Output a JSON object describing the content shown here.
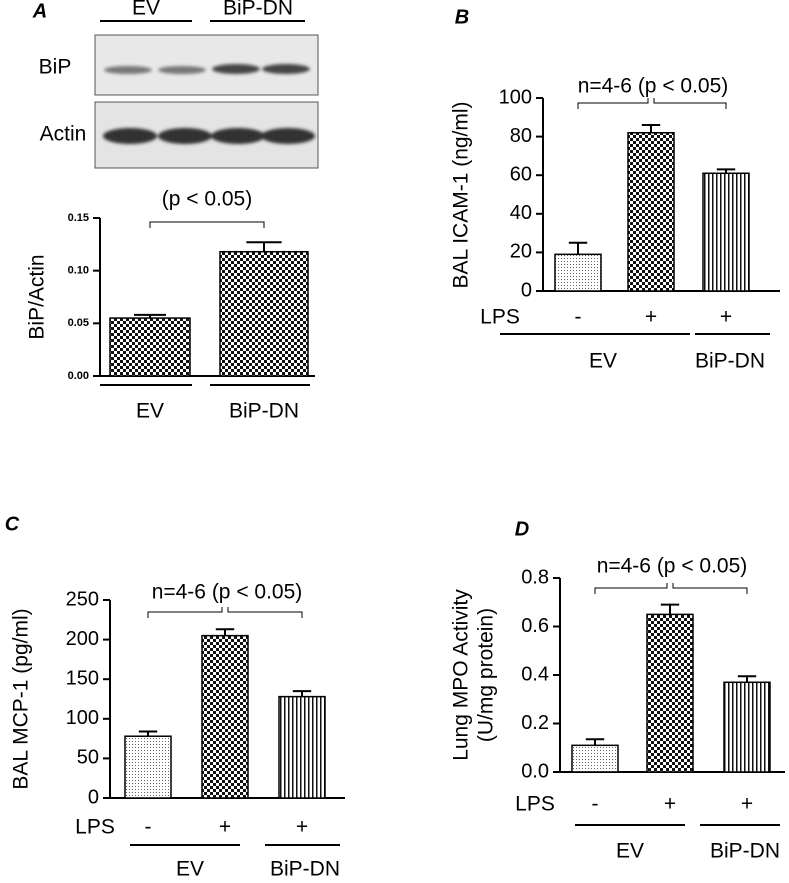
{
  "chart_data": [
    {
      "type": "bar",
      "panel": "A",
      "blot_labels": [
        "BiP",
        "Actin"
      ],
      "blot_groups": [
        "EV",
        "BiP-DN"
      ],
      "y_label": "BiP/Actin",
      "annotation": "(p < 0.05)",
      "categories": [
        "EV",
        "BiP-DN"
      ],
      "values": [
        0.055,
        0.118
      ],
      "errors": [
        0.003,
        0.009
      ],
      "patterns": [
        "checker",
        "checker"
      ],
      "ylim": [
        0,
        0.15
      ],
      "yticks": [
        {
          "value": 0,
          "label": "0.00"
        },
        {
          "value": 0.05,
          "label": "0.05"
        },
        {
          "value": 0.1,
          "label": "0.10"
        },
        {
          "value": 0.15,
          "label": "0.15"
        }
      ]
    },
    {
      "type": "bar",
      "panel": "B",
      "y_label": "BAL ICAM-1  (ng/ml)",
      "annotation": "n=4-6 (p < 0.05)",
      "row_label": "LPS",
      "categories": [
        "-",
        "+",
        "+"
      ],
      "groups": [
        "EV",
        "BiP-DN"
      ],
      "values": [
        19,
        82,
        61
      ],
      "errors": [
        6,
        4,
        2
      ],
      "patterns": [
        "dots",
        "checker",
        "stripes"
      ],
      "ylim": [
        0,
        100
      ],
      "yticks": [
        0,
        20,
        40,
        60,
        80,
        100
      ]
    },
    {
      "type": "bar",
      "panel": "C",
      "y_label": "BAL MCP-1  (pg/ml)",
      "annotation": "n=4-6 (p < 0.05)",
      "row_label": "LPS",
      "categories": [
        "-",
        "+",
        "+"
      ],
      "groups": [
        "EV",
        "BiP-DN"
      ],
      "values": [
        78,
        205,
        128
      ],
      "errors": [
        6,
        8,
        7
      ],
      "patterns": [
        "dots",
        "checker",
        "stripes"
      ],
      "ylim": [
        0,
        250
      ],
      "yticks": [
        0,
        50,
        100,
        150,
        200,
        250
      ]
    },
    {
      "type": "bar",
      "panel": "D",
      "y_label": [
        "Lung MPO Activity",
        "(U/mg protein)"
      ],
      "annotation": "n=4-6 (p < 0.05)",
      "row_label": "LPS",
      "categories": [
        "-",
        "+",
        "+"
      ],
      "groups": [
        "EV",
        "BiP-DN"
      ],
      "values": [
        0.11,
        0.65,
        0.37
      ],
      "errors": [
        0.025,
        0.04,
        0.025
      ],
      "patterns": [
        "dots",
        "checker",
        "stripes"
      ],
      "ylim": [
        0,
        0.8
      ],
      "yticks": [
        {
          "value": 0,
          "label": "0.0"
        },
        0.2,
        0.4,
        0.6,
        0.8
      ]
    }
  ]
}
